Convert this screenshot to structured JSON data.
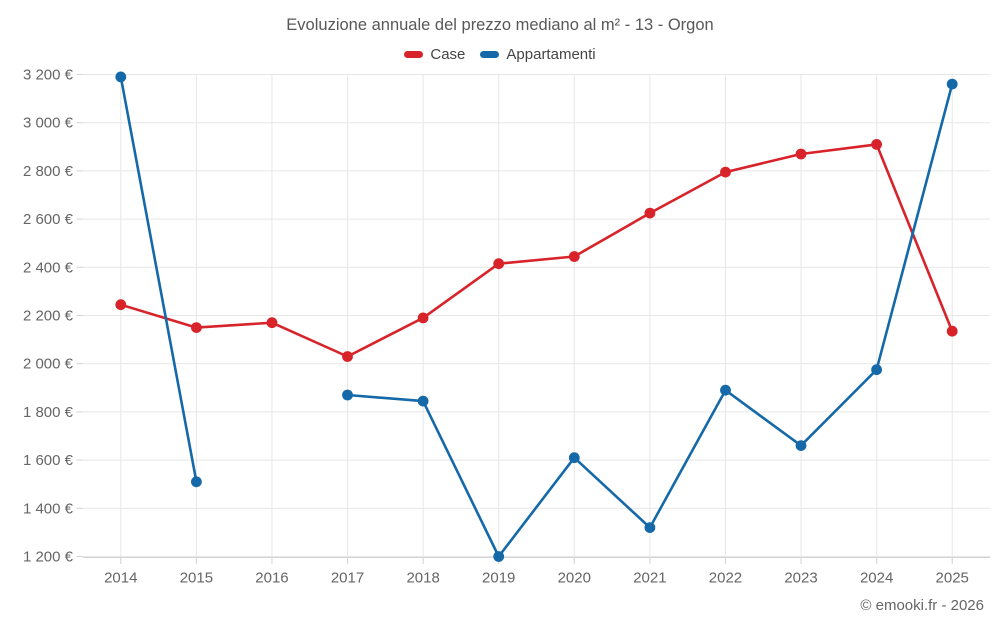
{
  "footer": "© emooki.fr - 2026",
  "colors": {
    "case_red": "#d8232a",
    "appartamenti_blue": "#1569a8",
    "grid": "#e7e7e7",
    "axis_line": "#d4d4d4",
    "axis_text": "#666666",
    "title_text": "#58585a",
    "legend_text": "#454545"
  },
  "chart_data": {
    "type": "line",
    "title": "Evoluzione annuale del prezzo mediano al m² - 13 - Orgon",
    "categories": [
      "2014",
      "2015",
      "2016",
      "2017",
      "2018",
      "2019",
      "2020",
      "2021",
      "2022",
      "2023",
      "2024",
      "2025"
    ],
    "series": [
      {
        "name": "Case",
        "color": "#d8232a",
        "values": [
          2245,
          2150,
          2170,
          2030,
          2190,
          2415,
          2445,
          2625,
          2795,
          2870,
          2910,
          2135
        ]
      },
      {
        "name": "Appartamenti",
        "color": "#1569a8",
        "values": [
          3190,
          1510,
          null,
          1870,
          1845,
          1200,
          1610,
          1320,
          1890,
          1660,
          1975,
          3160
        ]
      }
    ],
    "xlabel": "",
    "ylabel": "",
    "ylim": [
      1200,
      3200
    ],
    "ytick_step": 200,
    "ytick_labels": [
      "1 200 €",
      "1 400 €",
      "1 600 €",
      "1 800 €",
      "2 000 €",
      "2 200 €",
      "2 400 €",
      "2 600 €",
      "2 800 €",
      "3 000 €",
      "3 200 €"
    ],
    "grid": true,
    "legend_position": "top",
    "marker": "circle"
  }
}
